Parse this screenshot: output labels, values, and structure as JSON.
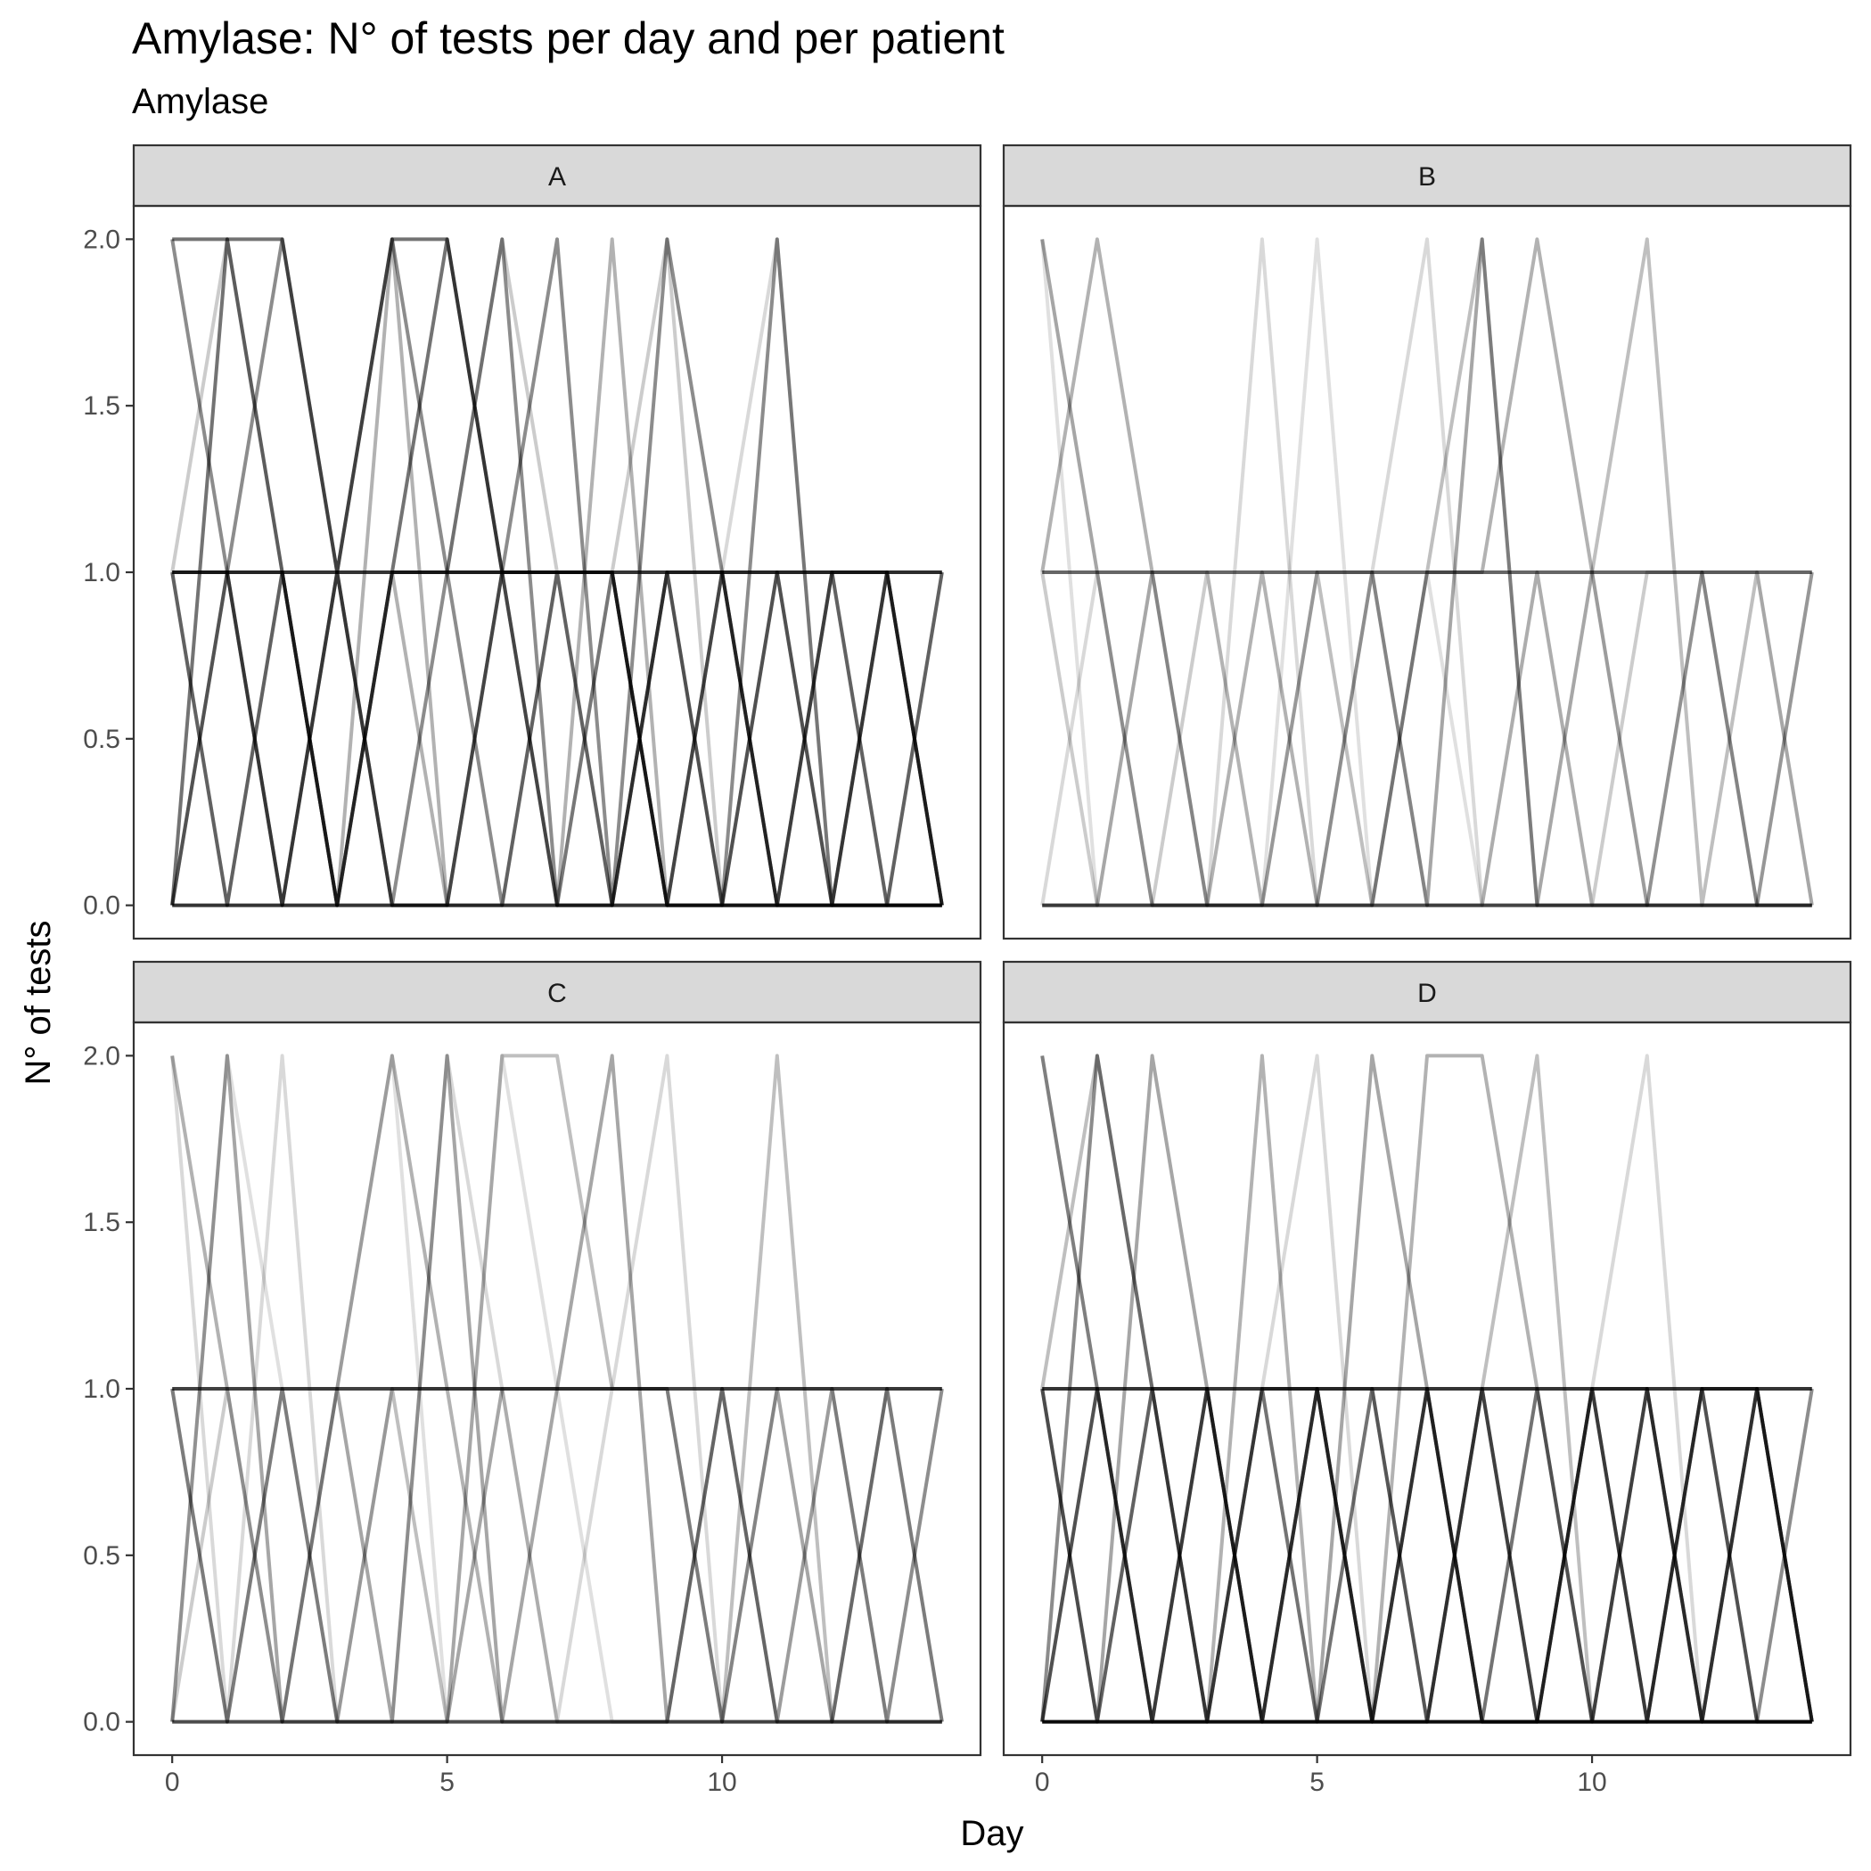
{
  "chart_data": {
    "type": "line",
    "title": "Amylase: N° of tests per day and per patient",
    "subtitle": "Amylase",
    "xlabel": "Day",
    "ylabel": "N° of tests",
    "xlim": [
      -0.7,
      14.7
    ],
    "ylim": [
      -0.1,
      2.1
    ],
    "x_ticks": [
      0,
      5,
      10
    ],
    "y_ticks": [
      0.0,
      0.5,
      1.0,
      1.5,
      2.0
    ],
    "x_tick_labels": [
      "0",
      "5",
      "10"
    ],
    "y_tick_labels": [
      "0.0",
      "0.5",
      "1.0",
      "1.5",
      "2.0"
    ],
    "grid": false,
    "line_color": "#000000",
    "panels": [
      {
        "name": "A",
        "series": [
          {
            "opacity": 0.55,
            "values": [
              2,
              2,
              2,
              1,
              2,
              2,
              1,
              1,
              1,
              0,
              0,
              0,
              0,
              0,
              0
            ]
          },
          {
            "opacity": 0.55,
            "values": [
              0,
              2,
              1,
              0,
              1,
              2,
              1,
              0,
              0,
              1,
              0,
              1,
              0,
              1,
              0
            ]
          },
          {
            "opacity": 0.55,
            "values": [
              1,
              1,
              0,
              1,
              0,
              0,
              1,
              1,
              1,
              0,
              1,
              0,
              0,
              0,
              0
            ]
          },
          {
            "opacity": 0.45,
            "values": [
              0,
              1,
              2,
              1,
              2,
              1,
              0,
              1,
              0,
              1,
              1,
              0,
              1,
              0,
              1
            ]
          },
          {
            "opacity": 0.45,
            "values": [
              1,
              0,
              1,
              0,
              1,
              1,
              2,
              0,
              1,
              0,
              0,
              2,
              0,
              1,
              0
            ]
          },
          {
            "opacity": 0.45,
            "values": [
              2,
              1,
              0,
              1,
              0,
              1,
              1,
              2,
              0,
              2,
              1,
              0,
              1,
              1,
              0
            ]
          },
          {
            "opacity": 0.3,
            "values": [
              1,
              0,
              1,
              0,
              1,
              0,
              1,
              0,
              2,
              0,
              1,
              1,
              0,
              0,
              1
            ]
          },
          {
            "opacity": 0.3,
            "values": [
              0,
              1,
              1,
              0,
              2,
              0,
              0,
              1,
              0,
              1,
              0,
              1,
              1,
              0,
              0
            ]
          },
          {
            "opacity": 0.2,
            "values": [
              1,
              2,
              1,
              0,
              1,
              1,
              2,
              1,
              1,
              2,
              0,
              0,
              1,
              1,
              0
            ]
          },
          {
            "opacity": 0.15,
            "values": [
              0,
              1,
              0,
              1,
              0,
              0,
              1,
              0,
              1,
              0,
              1,
              2,
              0,
              1,
              1
            ]
          },
          {
            "opacity": 0.8,
            "values": [
              1,
              1,
              1,
              1,
              1,
              1,
              1,
              1,
              1,
              1,
              1,
              1,
              1,
              1,
              1
            ]
          },
          {
            "opacity": 0.8,
            "values": [
              0,
              0,
              0,
              0,
              0,
              0,
              0,
              0,
              0,
              0,
              0,
              0,
              0,
              0,
              0
            ]
          }
        ]
      },
      {
        "name": "B",
        "series": [
          {
            "opacity": 0.35,
            "values": [
              2,
              1,
              0,
              0,
              0,
              0,
              1,
              0,
              2,
              0,
              0,
              0,
              1,
              0,
              0
            ]
          },
          {
            "opacity": 0.3,
            "values": [
              1,
              2,
              1,
              0,
              1,
              0,
              0,
              1,
              1,
              2,
              1,
              0,
              0,
              0,
              1
            ]
          },
          {
            "opacity": 0.25,
            "values": [
              0,
              0,
              1,
              0,
              0,
              1,
              0,
              1,
              2,
              0,
              1,
              2,
              0,
              1,
              0
            ]
          },
          {
            "opacity": 0.2,
            "values": [
              1,
              0,
              0,
              1,
              0,
              1,
              1,
              0,
              0,
              1,
              0,
              1,
              1,
              0,
              0
            ]
          },
          {
            "opacity": 0.15,
            "values": [
              0,
              1,
              0,
              0,
              2,
              0,
              1,
              2,
              0,
              1,
              0,
              0,
              0,
              0,
              1
            ]
          },
          {
            "opacity": 0.12,
            "values": [
              2,
              0,
              1,
              1,
              0,
              2,
              0,
              1,
              0,
              0,
              1,
              0,
              1,
              1,
              0
            ]
          },
          {
            "opacity": 0.6,
            "values": [
              1,
              1,
              1,
              1,
              1,
              1,
              1,
              1,
              1,
              1,
              1,
              1,
              1,
              1,
              1
            ]
          },
          {
            "opacity": 0.7,
            "values": [
              0,
              0,
              0,
              0,
              0,
              0,
              0,
              0,
              0,
              0,
              0,
              0,
              0,
              0,
              0
            ]
          }
        ]
      },
      {
        "name": "C",
        "series": [
          {
            "opacity": 0.35,
            "values": [
              0,
              2,
              0,
              1,
              0,
              2,
              0,
              1,
              2,
              0,
              1,
              0,
              0,
              1,
              0
            ]
          },
          {
            "opacity": 0.35,
            "values": [
              1,
              0,
              1,
              0,
              0,
              0,
              1,
              1,
              1,
              1,
              0,
              1,
              0,
              0,
              0
            ]
          },
          {
            "opacity": 0.3,
            "values": [
              2,
              1,
              0,
              1,
              2,
              1,
              0,
              0,
              0,
              0,
              1,
              0,
              1,
              0,
              1
            ]
          },
          {
            "opacity": 0.25,
            "values": [
              1,
              0,
              1,
              0,
              1,
              0,
              2,
              2,
              1,
              1,
              0,
              2,
              0,
              1,
              0
            ]
          },
          {
            "opacity": 0.2,
            "values": [
              0,
              1,
              0,
              0,
              1,
              1,
              1,
              0,
              0,
              0,
              0,
              1,
              1,
              0,
              1
            ]
          },
          {
            "opacity": 0.15,
            "values": [
              2,
              0,
              2,
              0,
              0,
              2,
              1,
              0,
              1,
              2,
              0,
              0,
              0,
              1,
              1
            ]
          },
          {
            "opacity": 0.12,
            "values": [
              0,
              2,
              1,
              1,
              2,
              0,
              2,
              1,
              0,
              0,
              1,
              0,
              1,
              0,
              0
            ]
          },
          {
            "opacity": 0.75,
            "values": [
              1,
              1,
              1,
              1,
              1,
              1,
              1,
              1,
              1,
              1,
              1,
              1,
              1,
              1,
              1
            ]
          },
          {
            "opacity": 0.7,
            "values": [
              0,
              0,
              0,
              0,
              0,
              0,
              0,
              0,
              0,
              0,
              0,
              0,
              0,
              0,
              0
            ]
          }
        ]
      },
      {
        "name": "D",
        "series": [
          {
            "opacity": 0.55,
            "values": [
              0,
              1,
              0,
              1,
              0,
              1,
              0,
              1,
              0,
              1,
              0,
              1,
              0,
              1,
              0
            ]
          },
          {
            "opacity": 0.55,
            "values": [
              1,
              0,
              1,
              0,
              1,
              0,
              1,
              0,
              1,
              0,
              1,
              0,
              1,
              0,
              0
            ]
          },
          {
            "opacity": 0.5,
            "values": [
              2,
              1,
              0,
              1,
              0,
              1,
              0,
              1,
              0,
              0,
              1,
              0,
              1,
              1,
              0
            ]
          },
          {
            "opacity": 0.45,
            "values": [
              0,
              2,
              1,
              0,
              1,
              1,
              0,
              0,
              1,
              0,
              0,
              1,
              0,
              1,
              0
            ]
          },
          {
            "opacity": 0.35,
            "values": [
              1,
              0,
              2,
              1,
              0,
              0,
              2,
              1,
              0,
              0,
              1,
              1,
              0,
              0,
              1
            ]
          },
          {
            "opacity": 0.3,
            "values": [
              0,
              1,
              0,
              0,
              2,
              0,
              0,
              2,
              2,
              1,
              0,
              0,
              1,
              0,
              0
            ]
          },
          {
            "opacity": 0.25,
            "values": [
              1,
              2,
              1,
              1,
              0,
              1,
              1,
              0,
              1,
              2,
              0,
              0,
              0,
              1,
              0
            ]
          },
          {
            "opacity": 0.15,
            "values": [
              0,
              0,
              1,
              0,
              1,
              2,
              0,
              1,
              0,
              0,
              1,
              2,
              0,
              0,
              1
            ]
          },
          {
            "opacity": 0.8,
            "values": [
              1,
              1,
              1,
              1,
              1,
              1,
              1,
              1,
              1,
              1,
              1,
              1,
              1,
              1,
              1
            ]
          },
          {
            "opacity": 0.95,
            "values": [
              0,
              0,
              0,
              0,
              0,
              0,
              0,
              0,
              0,
              0,
              0,
              0,
              0,
              0,
              0
            ]
          }
        ]
      }
    ]
  }
}
